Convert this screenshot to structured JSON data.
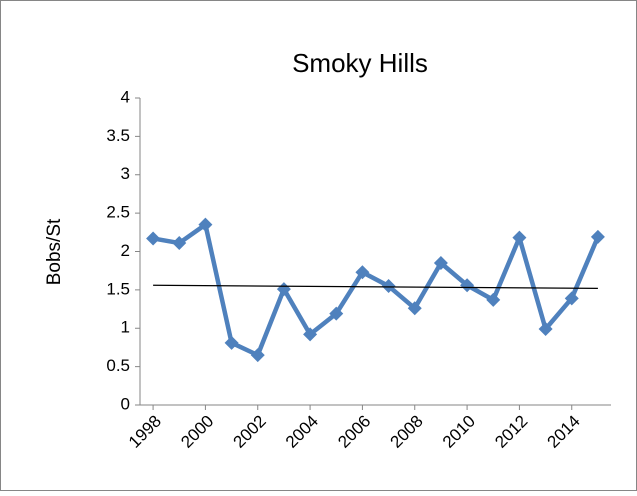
{
  "chart_data": {
    "type": "line",
    "title": "Smoky Hills",
    "y_label": "Bobs/St",
    "x": [
      1998,
      1999,
      2000,
      2001,
      2002,
      2003,
      2004,
      2005,
      2006,
      2007,
      2008,
      2009,
      2010,
      2011,
      2012,
      2013,
      2014,
      2015
    ],
    "series": [
      {
        "color": "#4f81bd",
        "values": [
          2.17,
          2.11,
          2.35,
          0.81,
          0.65,
          1.51,
          0.92,
          1.19,
          1.73,
          1.55,
          1.26,
          1.85,
          1.56,
          1.37,
          2.18,
          0.99,
          1.39,
          2.19
        ]
      }
    ],
    "trendline": {
      "color": "#000000",
      "x": [
        1998,
        2015
      ],
      "values": [
        1.56,
        1.52
      ]
    },
    "xlim": [
      1997.5,
      2015.5
    ],
    "xticks": [
      1998,
      2000,
      2002,
      2004,
      2006,
      2008,
      2010,
      2012,
      2014
    ],
    "ylim": [
      0,
      4
    ],
    "yticks": [
      0,
      0.5,
      1,
      1.5,
      2,
      2.5,
      3,
      3.5,
      4
    ],
    "grid": false
  }
}
